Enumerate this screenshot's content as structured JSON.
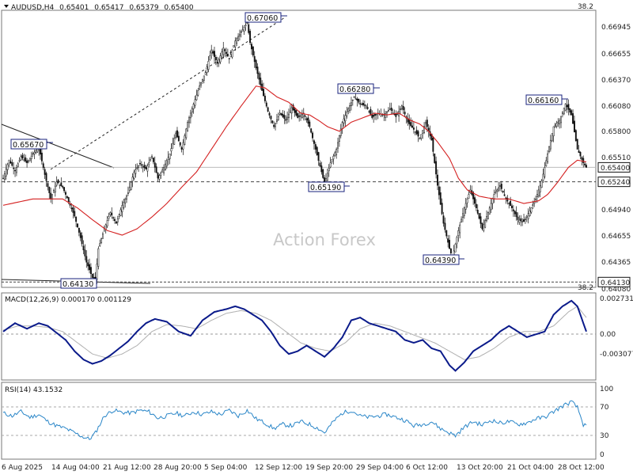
{
  "chart_data": [
    {
      "type": "candlestick",
      "title": "AUDUSD,H4",
      "ohlc": [
        "0.65401",
        "0.65417",
        "0.65379",
        "0.65400"
      ],
      "ylim": [
        0.6408,
        0.6713
      ],
      "yticks": [
        0.66945,
        0.66655,
        0.6637,
        0.6608,
        0.658,
        0.6551,
        0.6522,
        0.6494,
        0.64655,
        0.64365
      ],
      "ytick_labels": [
        "0.66945",
        "0.66655",
        "0.66370",
        "0.66080",
        "0.65800",
        "0.65510",
        "0.65220",
        "0.64940",
        "0.64655",
        "0.64365"
      ],
      "fib_top_label": "38.2",
      "fib_bottom_label": "38.2",
      "fib_bottom_value_label": "0.64080",
      "current_price": {
        "value": 0.654,
        "label": "0.65400"
      },
      "dashed_level": {
        "value": 0.6524,
        "label": "0.65240"
      },
      "bottom_level": {
        "value": 0.6413,
        "label": "0.64130"
      },
      "watermark": "Action Forex",
      "annotations": [
        {
          "label": "0.65670",
          "value": 0.6567
        },
        {
          "label": "0.64130",
          "value": 0.6413
        },
        {
          "label": "0.67060",
          "value": 0.6706
        },
        {
          "label": "0.65190",
          "value": 0.6519
        },
        {
          "label": "0.66280",
          "value": 0.6628
        },
        {
          "label": "0.64390",
          "value": 0.6439
        },
        {
          "label": "0.66160",
          "value": 0.6616
        }
      ],
      "close_path": [
        [
          0,
          0.6528
        ],
        [
          4,
          0.6548
        ],
        [
          8,
          0.6536
        ],
        [
          12,
          0.6552
        ],
        [
          16,
          0.6545
        ],
        [
          20,
          0.6555
        ],
        [
          24,
          0.6562
        ],
        [
          28,
          0.6532
        ],
        [
          32,
          0.6505
        ],
        [
          36,
          0.6524
        ],
        [
          40,
          0.6518
        ],
        [
          44,
          0.6502
        ],
        [
          48,
          0.6486
        ],
        [
          52,
          0.6462
        ],
        [
          56,
          0.6435
        ],
        [
          60,
          0.6418
        ],
        [
          62,
          0.6416
        ],
        [
          64,
          0.645
        ],
        [
          68,
          0.6472
        ],
        [
          72,
          0.649
        ],
        [
          76,
          0.6478
        ],
        [
          80,
          0.6498
        ],
        [
          84,
          0.6512
        ],
        [
          88,
          0.6535
        ],
        [
          92,
          0.6544
        ],
        [
          96,
          0.6538
        ],
        [
          100,
          0.6552
        ],
        [
          104,
          0.6528
        ],
        [
          108,
          0.654
        ],
        [
          112,
          0.6555
        ],
        [
          116,
          0.6578
        ],
        [
          120,
          0.656
        ],
        [
          124,
          0.659
        ],
        [
          128,
          0.661
        ],
        [
          132,
          0.663
        ],
        [
          136,
          0.6645
        ],
        [
          140,
          0.667
        ],
        [
          144,
          0.6655
        ],
        [
          148,
          0.6672
        ],
        [
          152,
          0.666
        ],
        [
          156,
          0.668
        ],
        [
          160,
          0.669
        ],
        [
          164,
          0.67
        ],
        [
          166,
          0.6678
        ],
        [
          170,
          0.665
        ],
        [
          174,
          0.6625
        ],
        [
          178,
          0.6602
        ],
        [
          182,
          0.6585
        ],
        [
          186,
          0.66
        ],
        [
          190,
          0.6592
        ],
        [
          194,
          0.6606
        ],
        [
          198,
          0.6595
        ],
        [
          202,
          0.66
        ],
        [
          206,
          0.6585
        ],
        [
          210,
          0.656
        ],
        [
          214,
          0.6535
        ],
        [
          216,
          0.6522
        ],
        [
          220,
          0.6545
        ],
        [
          224,
          0.656
        ],
        [
          228,
          0.659
        ],
        [
          232,
          0.6605
        ],
        [
          236,
          0.6618
        ],
        [
          240,
          0.661
        ],
        [
          244,
          0.6608
        ],
        [
          248,
          0.6595
        ],
        [
          252,
          0.66
        ],
        [
          256,
          0.6598
        ],
        [
          260,
          0.6605
        ],
        [
          264,
          0.6596
        ],
        [
          268,
          0.6608
        ],
        [
          272,
          0.659
        ],
        [
          276,
          0.6582
        ],
        [
          280,
          0.6572
        ],
        [
          284,
          0.659
        ],
        [
          288,
          0.657
        ],
        [
          292,
          0.652
        ],
        [
          296,
          0.6478
        ],
        [
          300,
          0.645
        ],
        [
          302,
          0.644
        ],
        [
          306,
          0.647
        ],
        [
          310,
          0.6495
        ],
        [
          314,
          0.6515
        ],
        [
          318,
          0.6495
        ],
        [
          322,
          0.6472
        ],
        [
          326,
          0.649
        ],
        [
          330,
          0.651
        ],
        [
          334,
          0.652
        ],
        [
          338,
          0.6505
        ],
        [
          342,
          0.6495
        ],
        [
          346,
          0.6482
        ],
        [
          350,
          0.648
        ],
        [
          354,
          0.6492
        ],
        [
          358,
          0.6505
        ],
        [
          362,
          0.6525
        ],
        [
          366,
          0.6555
        ],
        [
          370,
          0.6585
        ],
        [
          374,
          0.6592
        ],
        [
          378,
          0.661
        ],
        [
          382,
          0.6598
        ],
        [
          386,
          0.656
        ],
        [
          390,
          0.6545
        ],
        [
          392,
          0.654
        ]
      ],
      "ma_path": [
        [
          0,
          0.6498
        ],
        [
          20,
          0.6505
        ],
        [
          40,
          0.6505
        ],
        [
          50,
          0.6495
        ],
        [
          60,
          0.6482
        ],
        [
          70,
          0.647
        ],
        [
          80,
          0.6465
        ],
        [
          90,
          0.6472
        ],
        [
          100,
          0.6485
        ],
        [
          110,
          0.65
        ],
        [
          120,
          0.6518
        ],
        [
          130,
          0.6535
        ],
        [
          140,
          0.656
        ],
        [
          150,
          0.6585
        ],
        [
          160,
          0.6608
        ],
        [
          170,
          0.663
        ],
        [
          176,
          0.6628
        ],
        [
          184,
          0.6618
        ],
        [
          192,
          0.6612
        ],
        [
          200,
          0.66
        ],
        [
          206,
          0.6598
        ],
        [
          212,
          0.6592
        ],
        [
          218,
          0.6585
        ],
        [
          226,
          0.658
        ],
        [
          234,
          0.659
        ],
        [
          242,
          0.6595
        ],
        [
          250,
          0.66
        ],
        [
          258,
          0.6598
        ],
        [
          266,
          0.66
        ],
        [
          274,
          0.6592
        ],
        [
          280,
          0.6588
        ],
        [
          286,
          0.658
        ],
        [
          292,
          0.6568
        ],
        [
          300,
          0.655
        ],
        [
          306,
          0.6528
        ],
        [
          312,
          0.6515
        ],
        [
          320,
          0.6508
        ],
        [
          330,
          0.6505
        ],
        [
          340,
          0.6505
        ],
        [
          350,
          0.65
        ],
        [
          360,
          0.6503
        ],
        [
          366,
          0.651
        ],
        [
          372,
          0.6522
        ],
        [
          380,
          0.654
        ],
        [
          386,
          0.6548
        ],
        [
          392,
          0.6546
        ]
      ]
    },
    {
      "type": "line",
      "title": "MACD(12,26,9) 0.000170 0.001129",
      "ylim": [
        -0.0032,
        0.0029
      ],
      "ytick_labels": [
        "0.002731",
        "0.00",
        "-0.003077"
      ],
      "macd_path": [
        [
          0,
          0.0002
        ],
        [
          8,
          0.0008
        ],
        [
          16,
          0.0004
        ],
        [
          24,
          0.0008
        ],
        [
          30,
          0.0006
        ],
        [
          36,
          0.0001
        ],
        [
          42,
          -0.0004
        ],
        [
          48,
          -0.0012
        ],
        [
          54,
          -0.0018
        ],
        [
          60,
          -0.0021
        ],
        [
          66,
          -0.0019
        ],
        [
          72,
          -0.0015
        ],
        [
          78,
          -0.001
        ],
        [
          84,
          -0.0005
        ],
        [
          90,
          0.0002
        ],
        [
          96,
          0.0008
        ],
        [
          102,
          0.0011
        ],
        [
          110,
          0.0009
        ],
        [
          118,
          0.0002
        ],
        [
          126,
          -0.0001
        ],
        [
          134,
          0.001
        ],
        [
          142,
          0.0016
        ],
        [
          150,
          0.0018
        ],
        [
          156,
          0.002
        ],
        [
          162,
          0.0018
        ],
        [
          168,
          0.0014
        ],
        [
          174,
          0.001
        ],
        [
          180,
          0.0002
        ],
        [
          186,
          -0.0008
        ],
        [
          192,
          -0.0014
        ],
        [
          198,
          -0.0012
        ],
        [
          204,
          -0.0008
        ],
        [
          210,
          -0.0012
        ],
        [
          216,
          -0.0016
        ],
        [
          222,
          -0.001
        ],
        [
          228,
          -0.0002
        ],
        [
          234,
          0.001
        ],
        [
          240,
          0.0012
        ],
        [
          246,
          0.0008
        ],
        [
          252,
          0.0006
        ],
        [
          258,
          0.0004
        ],
        [
          264,
          0.0002
        ],
        [
          270,
          -0.0004
        ],
        [
          276,
          -0.0006
        ],
        [
          282,
          -0.0004
        ],
        [
          288,
          -0.001
        ],
        [
          294,
          -0.0012
        ],
        [
          300,
          -0.0022
        ],
        [
          304,
          -0.0026
        ],
        [
          310,
          -0.002
        ],
        [
          316,
          -0.0012
        ],
        [
          322,
          -0.0008
        ],
        [
          328,
          -0.0004
        ],
        [
          334,
          0.0002
        ],
        [
          340,
          0.0006
        ],
        [
          346,
          0.0002
        ],
        [
          352,
          -0.0002
        ],
        [
          358,
          0.0
        ],
        [
          364,
          0.0002
        ],
        [
          370,
          0.0014
        ],
        [
          376,
          0.002
        ],
        [
          382,
          0.0024
        ],
        [
          386,
          0.002
        ],
        [
          390,
          0.0008
        ],
        [
          392,
          0.0002
        ]
      ],
      "signal_path": [
        [
          0,
          0.0003
        ],
        [
          10,
          0.0006
        ],
        [
          20,
          0.0006
        ],
        [
          30,
          0.0005
        ],
        [
          40,
          0.0002
        ],
        [
          50,
          -0.0006
        ],
        [
          60,
          -0.0014
        ],
        [
          70,
          -0.0017
        ],
        [
          80,
          -0.0014
        ],
        [
          90,
          -0.0008
        ],
        [
          100,
          0.0002
        ],
        [
          110,
          0.0007
        ],
        [
          120,
          0.0006
        ],
        [
          130,
          0.0004
        ],
        [
          140,
          0.001
        ],
        [
          150,
          0.0015
        ],
        [
          160,
          0.0017
        ],
        [
          170,
          0.0015
        ],
        [
          180,
          0.001
        ],
        [
          190,
          0.0002
        ],
        [
          200,
          -0.0006
        ],
        [
          210,
          -0.001
        ],
        [
          220,
          -0.0012
        ],
        [
          230,
          -0.0006
        ],
        [
          240,
          0.0004
        ],
        [
          250,
          0.0008
        ],
        [
          260,
          0.0006
        ],
        [
          270,
          0.0002
        ],
        [
          280,
          -0.0002
        ],
        [
          290,
          -0.0006
        ],
        [
          300,
          -0.0012
        ],
        [
          310,
          -0.0018
        ],
        [
          320,
          -0.0016
        ],
        [
          330,
          -0.001
        ],
        [
          340,
          -0.0002
        ],
        [
          350,
          0.0002
        ],
        [
          360,
          0.0002
        ],
        [
          370,
          0.0006
        ],
        [
          380,
          0.0016
        ],
        [
          386,
          0.002
        ],
        [
          392,
          0.0012
        ]
      ]
    },
    {
      "type": "line",
      "title": "RSI(14) 43.1532",
      "ylim": [
        0,
        100
      ],
      "yticks": [
        100,
        70,
        30,
        0
      ],
      "ytick_labels": [
        "100",
        "70",
        "30",
        "0"
      ],
      "rsi_path": [
        [
          0,
          62
        ],
        [
          6,
          58
        ],
        [
          12,
          64
        ],
        [
          18,
          56
        ],
        [
          24,
          60
        ],
        [
          30,
          50
        ],
        [
          36,
          44
        ],
        [
          42,
          40
        ],
        [
          48,
          34
        ],
        [
          54,
          28
        ],
        [
          58,
          25
        ],
        [
          62,
          34
        ],
        [
          68,
          58
        ],
        [
          74,
          66
        ],
        [
          80,
          63
        ],
        [
          86,
          62
        ],
        [
          92,
          66
        ],
        [
          98,
          64
        ],
        [
          104,
          55
        ],
        [
          110,
          58
        ],
        [
          116,
          62
        ],
        [
          122,
          58
        ],
        [
          128,
          64
        ],
        [
          134,
          60
        ],
        [
          140,
          64
        ],
        [
          146,
          60
        ],
        [
          152,
          66
        ],
        [
          158,
          58
        ],
        [
          164,
          66
        ],
        [
          170,
          54
        ],
        [
          176,
          48
        ],
        [
          182,
          40
        ],
        [
          188,
          46
        ],
        [
          194,
          44
        ],
        [
          200,
          50
        ],
        [
          206,
          46
        ],
        [
          212,
          40
        ],
        [
          216,
          34
        ],
        [
          222,
          50
        ],
        [
          228,
          62
        ],
        [
          234,
          66
        ],
        [
          240,
          58
        ],
        [
          246,
          56
        ],
        [
          252,
          58
        ],
        [
          258,
          60
        ],
        [
          264,
          56
        ],
        [
          270,
          52
        ],
        [
          276,
          44
        ],
        [
          282,
          46
        ],
        [
          288,
          50
        ],
        [
          294,
          40
        ],
        [
          300,
          34
        ],
        [
          304,
          30
        ],
        [
          310,
          42
        ],
        [
          316,
          50
        ],
        [
          322,
          45
        ],
        [
          328,
          52
        ],
        [
          334,
          48
        ],
        [
          340,
          50
        ],
        [
          346,
          46
        ],
        [
          352,
          48
        ],
        [
          358,
          54
        ],
        [
          364,
          56
        ],
        [
          370,
          64
        ],
        [
          376,
          72
        ],
        [
          382,
          78
        ],
        [
          386,
          70
        ],
        [
          390,
          46
        ],
        [
          392,
          43
        ]
      ]
    }
  ],
  "x_axis": {
    "labels": [
      "6 Aug 2025",
      "14 Aug 04:00",
      "21 Aug 12:00",
      "28 Aug 20:00",
      "5 Sep 04:00",
      "12 Sep 12:00",
      "19 Sep 20:00",
      "29 Sep 04:00",
      "6 Oct 12:00",
      "13 Oct 20:00",
      "21 Oct 04:00",
      "28 Oct 12:00"
    ]
  },
  "colors": {
    "candle": "#111111",
    "ma": "#d42020",
    "macd": "#0a1a8a",
    "signal": "#b0b0b0",
    "rsi": "#2a86c8",
    "trendline": "#222222",
    "dashed": "#444444",
    "label_border": "#1a237e"
  }
}
